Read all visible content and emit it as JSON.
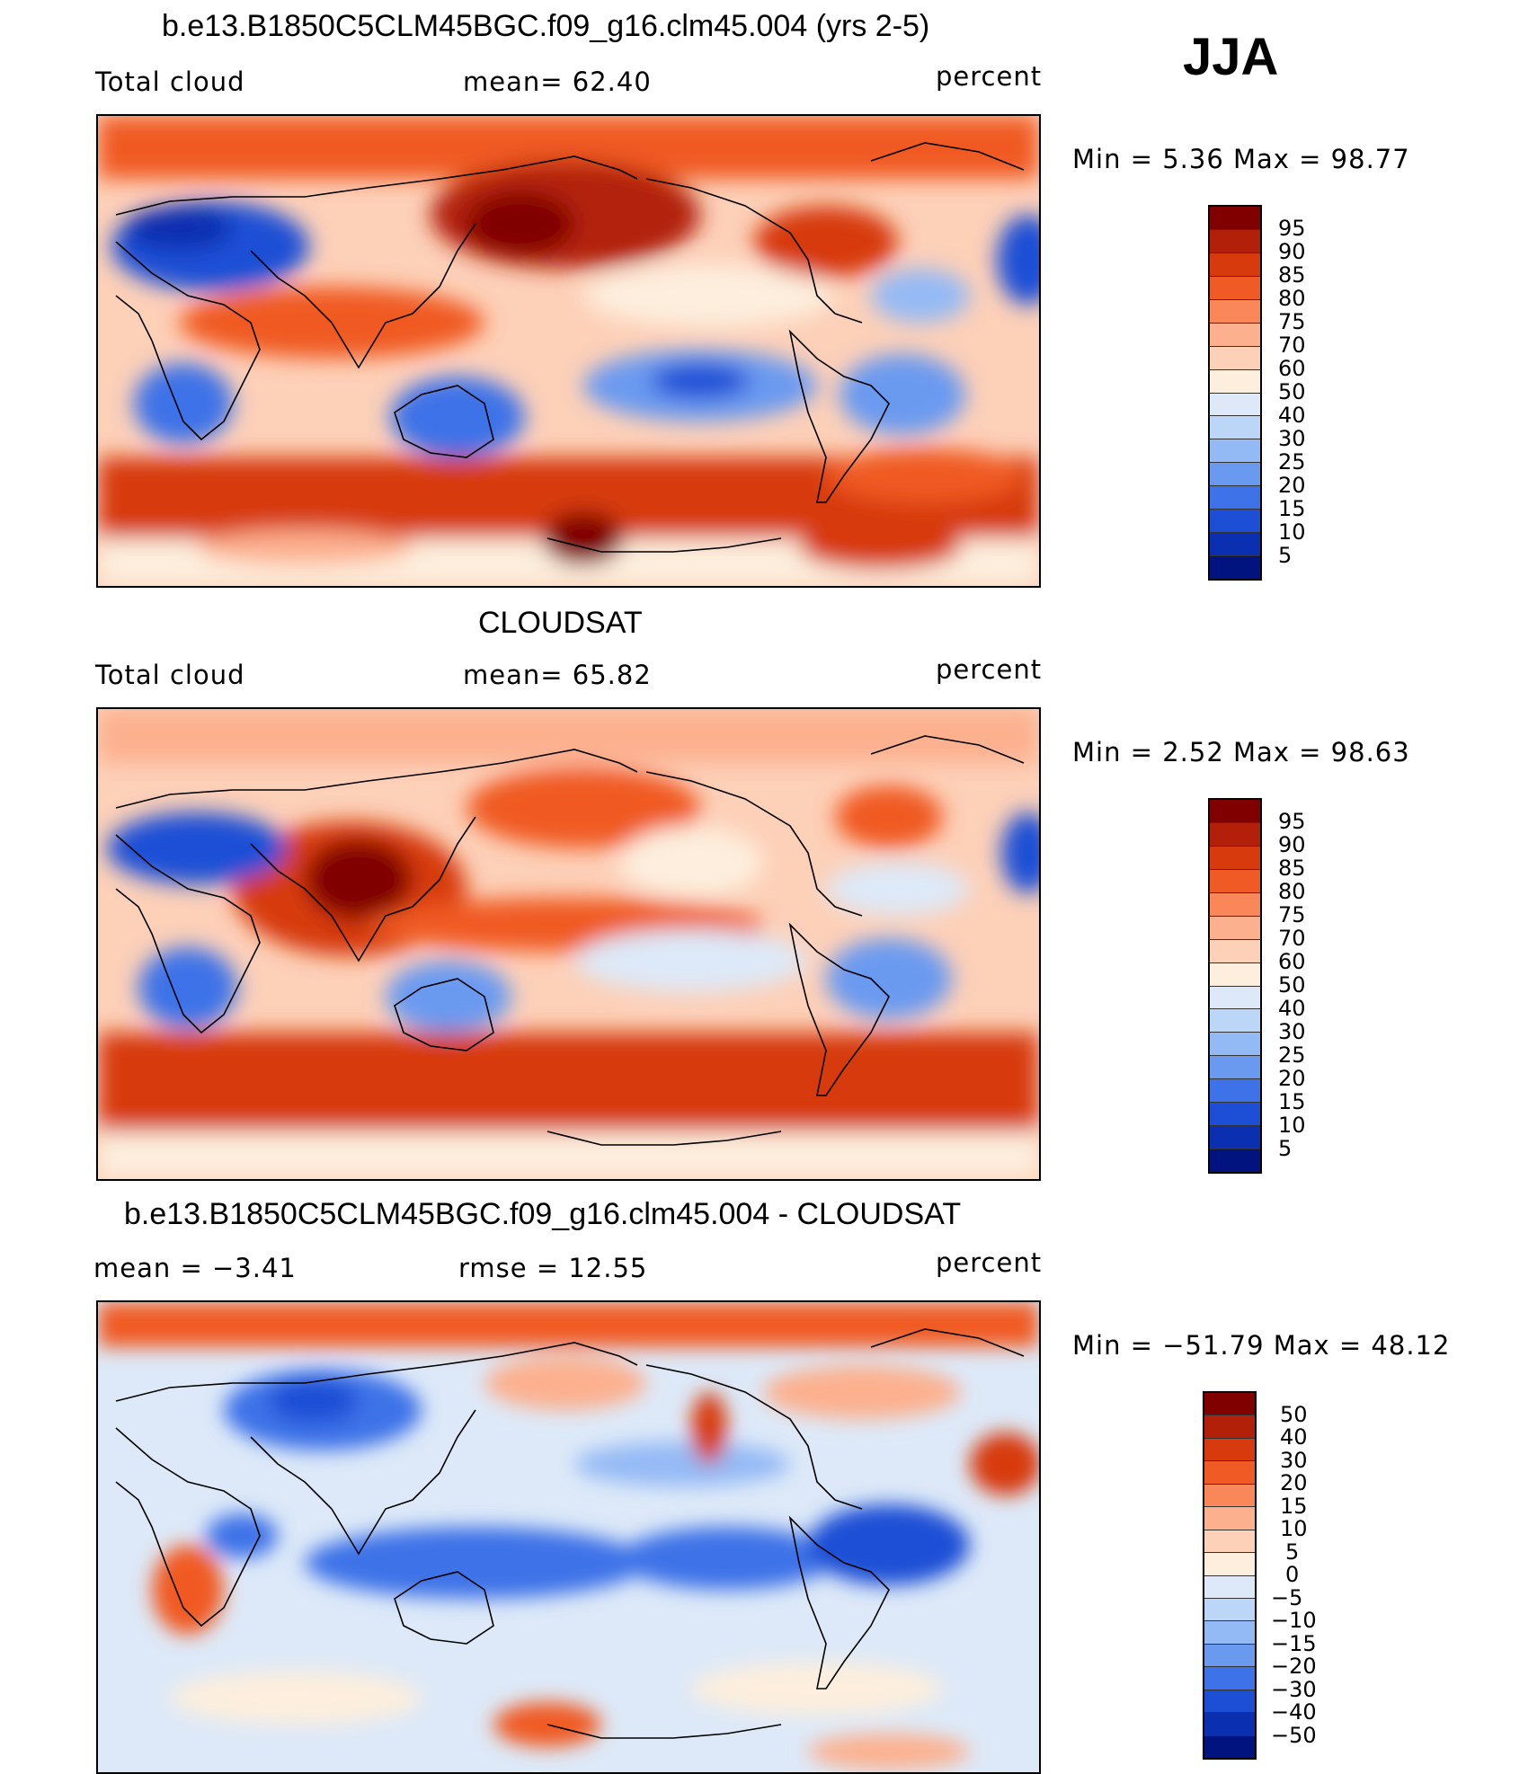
{
  "season": "JJA",
  "panels": [
    {
      "title": "b.e13.B1850C5CLM45BGC.f09_g16.clm45.004 (yrs 2-5)",
      "left_label": "Total cloud",
      "center_label": "mean=   62.40",
      "units": "percent",
      "minmax": "Min =     5.36  Max =    98.77",
      "colorbar_labels": [
        "95",
        "90",
        "85",
        "80",
        "75",
        "70",
        "60",
        "50",
        "40",
        "30",
        "25",
        "20",
        "15",
        "10",
        "5"
      ]
    },
    {
      "title": "CLOUDSAT",
      "left_label": "Total cloud",
      "center_label": "mean=   65.82",
      "units": "percent",
      "minmax": "Min =     2.52  Max =    98.63",
      "colorbar_labels": [
        "95",
        "90",
        "85",
        "80",
        "75",
        "70",
        "60",
        "50",
        "40",
        "30",
        "25",
        "20",
        "15",
        "10",
        "5"
      ]
    },
    {
      "title": "b.e13.B1850C5CLM45BGC.f09_g16.clm45.004 - CLOUDSAT",
      "left_label": "mean =   −3.41",
      "center_label": "rmse =    12.55",
      "units": "percent",
      "minmax": "Min = −51.79  Max =   48.12",
      "colorbar_labels": [
        "50",
        "40",
        "30",
        "20",
        "15",
        "10",
        "5",
        "0",
        "−5",
        "−10",
        "−15",
        "−20",
        "−30",
        "−40",
        "−50"
      ]
    }
  ],
  "colorbar_colors": [
    "#800000",
    "#b2200a",
    "#d73a0d",
    "#f05a24",
    "#f9875a",
    "#fcb08e",
    "#fdd0b8",
    "#fdeedd",
    "#dde9f8",
    "#bcd6f8",
    "#94baf5",
    "#6a9af0",
    "#3d72e8",
    "#1c4fd6",
    "#0a2fb0",
    "#00137e"
  ]
}
